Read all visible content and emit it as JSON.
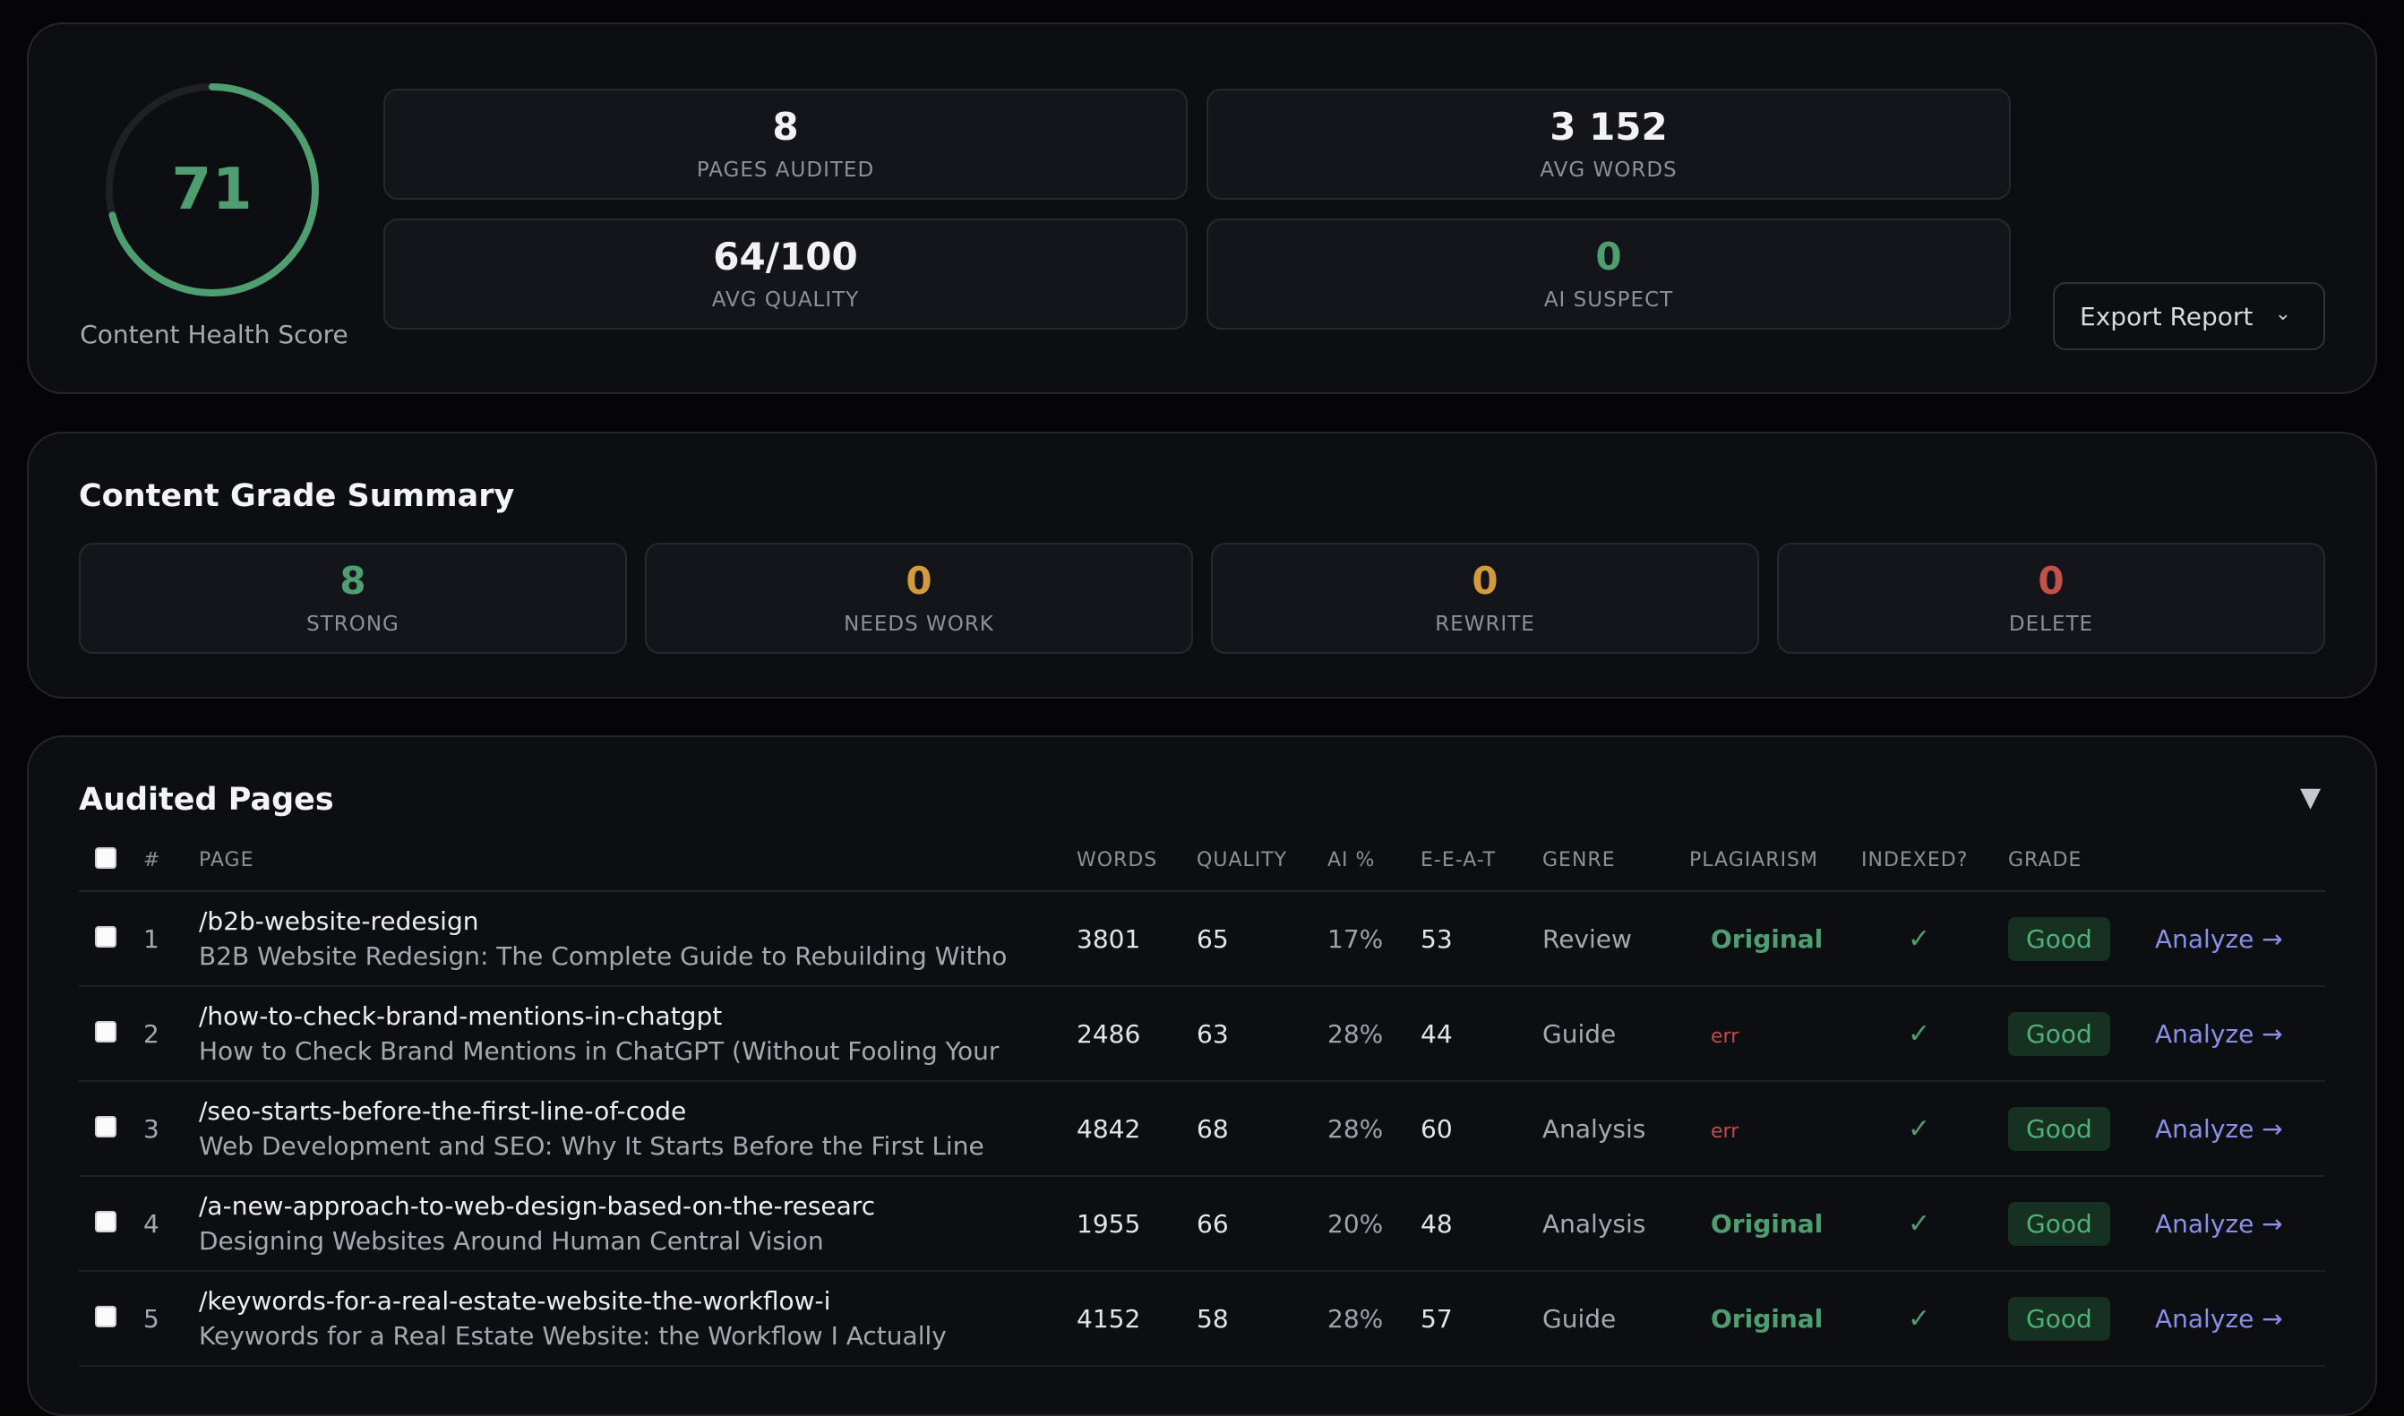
{
  "health": {
    "score": "71",
    "score_fraction": 0.71,
    "label": "Content Health Score",
    "accent": "#4f9e72"
  },
  "stats": {
    "pages_audited": {
      "value": "8",
      "label": "PAGES AUDITED"
    },
    "avg_words": {
      "value": "3 152",
      "label": "AVG WORDS"
    },
    "avg_quality": {
      "value": "64/100",
      "label": "AVG QUALITY"
    },
    "ai_suspect": {
      "value": "0",
      "label": "AI SUSPECT",
      "color": "#4f9e72"
    }
  },
  "export": {
    "label": "Export Report",
    "icon": "chevron-down-icon"
  },
  "grade_summary": {
    "title": "Content Grade Summary",
    "strong": {
      "value": "8",
      "label": "STRONG",
      "color": "#4f9e72"
    },
    "needs_work": {
      "value": "0",
      "label": "NEEDS WORK",
      "color": "#d49a3e"
    },
    "rewrite": {
      "value": "0",
      "label": "REWRITE",
      "color": "#d49a3e"
    },
    "delete": {
      "value": "0",
      "label": "DELETE",
      "color": "#c4504a"
    }
  },
  "pages": {
    "title": "Audited Pages",
    "collapse_icon": "▼",
    "columns": {
      "num": "#",
      "page": "PAGE",
      "words": "WORDS",
      "quality": "QUALITY",
      "ai": "AI %",
      "eeat": "E-E-A-T",
      "genre": "GENRE",
      "plagiarism": "PLAGIARISM",
      "indexed": "INDEXED?",
      "grade": "GRADE"
    },
    "rows": [
      {
        "num": "1",
        "slug": "/b2b-website-redesign",
        "title": "B2B Website Redesign: The Complete Guide to Rebuilding Witho",
        "words": "3801",
        "quality": "65",
        "ai": "17%",
        "eeat": "53",
        "genre": "Review",
        "plagiarism": "Original",
        "indexed": "✓",
        "grade": "Good",
        "action": "Analyze →"
      },
      {
        "num": "2",
        "slug": "/how-to-check-brand-mentions-in-chatgpt",
        "title": "How to Check Brand Mentions in ChatGPT (Without Fooling Your",
        "words": "2486",
        "quality": "63",
        "ai": "28%",
        "eeat": "44",
        "genre": "Guide",
        "plagiarism": "err",
        "indexed": "✓",
        "grade": "Good",
        "action": "Analyze →"
      },
      {
        "num": "3",
        "slug": "/seo-starts-before-the-first-line-of-code",
        "title": "Web Development and SEO: Why It Starts Before the First Line",
        "words": "4842",
        "quality": "68",
        "ai": "28%",
        "eeat": "60",
        "genre": "Analysis",
        "plagiarism": "err",
        "indexed": "✓",
        "grade": "Good",
        "action": "Analyze →"
      },
      {
        "num": "4",
        "slug": "/a-new-approach-to-web-design-based-on-the-researc",
        "title": "Designing Websites Around Human Central Vision",
        "words": "1955",
        "quality": "66",
        "ai": "20%",
        "eeat": "48",
        "genre": "Analysis",
        "plagiarism": "Original",
        "indexed": "✓",
        "grade": "Good",
        "action": "Analyze →"
      },
      {
        "num": "5",
        "slug": "/keywords-for-a-real-estate-website-the-workflow-i",
        "title": "Keywords for a Real Estate Website: the Workflow I Actually",
        "words": "4152",
        "quality": "58",
        "ai": "28%",
        "eeat": "57",
        "genre": "Guide",
        "plagiarism": "Original",
        "indexed": "✓",
        "grade": "Good",
        "action": "Analyze →"
      }
    ]
  }
}
